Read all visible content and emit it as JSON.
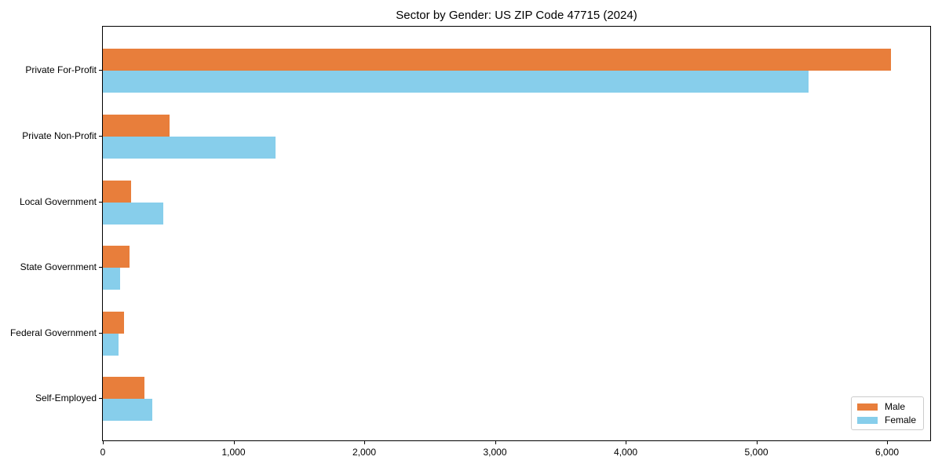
{
  "chart_data": {
    "type": "bar",
    "orientation": "horizontal",
    "title": "Sector by Gender: US ZIP Code 47715 (2024)",
    "categories": [
      "Private For-Profit",
      "Private Non-Profit",
      "Local Government",
      "State Government",
      "Federal Government",
      "Self-Employed"
    ],
    "series": [
      {
        "name": "Male",
        "color": "#e87e3b",
        "values": [
          6030,
          510,
          215,
          205,
          165,
          320
        ]
      },
      {
        "name": "Female",
        "color": "#87ceeb",
        "values": [
          5400,
          1320,
          460,
          130,
          120,
          380
        ]
      }
    ],
    "xlim": [
      0,
      6330
    ],
    "xticks": [
      0,
      1000,
      2000,
      3000,
      4000,
      5000,
      6000
    ],
    "xtick_labels": [
      "0",
      "1,000",
      "2,000",
      "3,000",
      "4,000",
      "5,000",
      "6,000"
    ],
    "xlabel": "",
    "ylabel": "",
    "grid": false,
    "legend_position": "lower right",
    "plot_border_color": "#000000",
    "background_color": "#ffffff"
  }
}
